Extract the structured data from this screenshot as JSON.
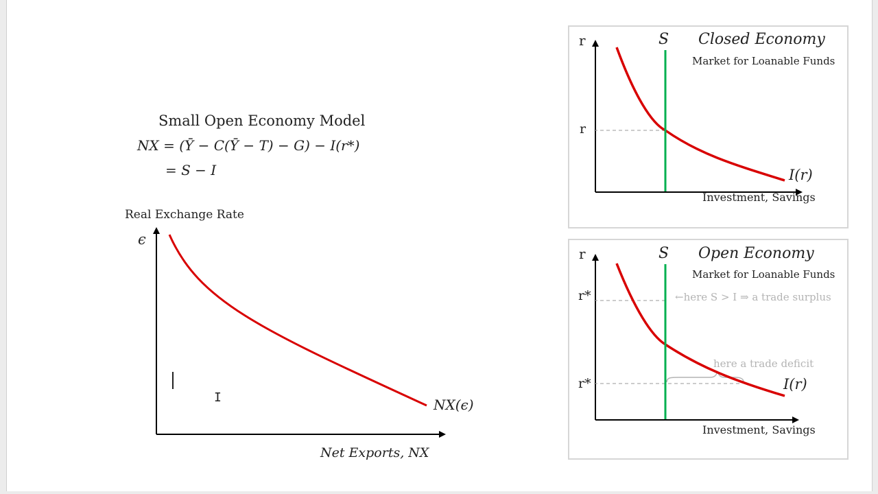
{
  "main": {
    "title": "Small Open Economy Model",
    "equation_line1": "NX = (Ȳ − C(Ȳ − T) − G) − I(r*)",
    "equation_line2": "= S − I",
    "y_axis_title": "Real Exchange Rate",
    "y_symbol": "ϵ",
    "x_axis_title": "Net Exports, NX",
    "curve_label": "NX(ϵ)"
  },
  "closed_panel": {
    "title": "Closed Economy",
    "subtitle": "Market for Loanable Funds",
    "y_label": "r",
    "s_label": "S",
    "r_tick": "r",
    "curve_label": "I(r)",
    "x_label": "Investment, Savings"
  },
  "open_panel": {
    "title": "Open Economy",
    "subtitle": "Market for Loanable Funds",
    "y_label": "r",
    "s_label": "S",
    "r_high_tick": "r*",
    "r_low_tick": "r*",
    "surplus_note": "←here S > I ⇒ a trade surplus",
    "deficit_note": "here a trade deficit",
    "curve_label": "I(r)",
    "x_label": "Investment, Savings"
  },
  "colors": {
    "curve": "#d80000",
    "saving_line": "#00b050",
    "axis": "#000000",
    "note_gray": "#b4b4b4",
    "dash": "#9a9a9a"
  }
}
